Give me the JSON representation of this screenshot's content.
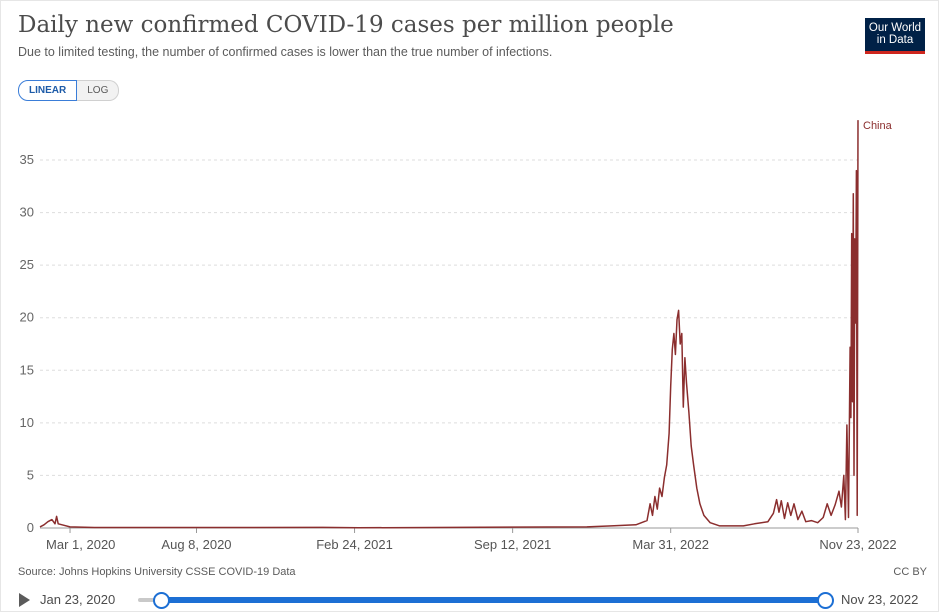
{
  "header": {
    "title": "Daily new confirmed COVID-19 cases per million people",
    "subtitle": "Due to limited testing, the number of confirmed cases is lower than the true number of infections.",
    "logo_line1": "Our World",
    "logo_line2": "in Data"
  },
  "scale_toggle": {
    "linear": "LINEAR",
    "log": "LOG",
    "selected": "LINEAR"
  },
  "footer": {
    "source": "Source: Johns Hopkins University CSSE COVID-19 Data",
    "license": "CC BY"
  },
  "timeline": {
    "start_label": "Jan 23, 2020",
    "end_label": "Nov 23, 2022",
    "play_icon": "play-icon"
  },
  "colors": {
    "series": "#8b2e2e",
    "accent": "#1c6fd4",
    "logo_bg": "#002147",
    "logo_bar": "#ce261e",
    "grid": "#dddddd"
  },
  "chart_data": {
    "type": "line",
    "title": "Daily new confirmed COVID-19 cases per million people",
    "xlabel": "",
    "ylabel": "",
    "ylim": [
      0,
      39
    ],
    "xlim": [
      "2020-01-23",
      "2022-11-23"
    ],
    "y_ticks": [
      0,
      5,
      10,
      15,
      20,
      25,
      30,
      35
    ],
    "x_ticks": [
      {
        "date": "2020-03-01",
        "label": "Mar 1, 2020"
      },
      {
        "date": "2020-08-08",
        "label": "Aug 8, 2020"
      },
      {
        "date": "2021-02-24",
        "label": "Feb 24, 2021"
      },
      {
        "date": "2021-09-12",
        "label": "Sep 12, 2021"
      },
      {
        "date": "2022-03-31",
        "label": "Mar 31, 2022"
      },
      {
        "date": "2022-11-23",
        "label": "Nov 23, 2022"
      }
    ],
    "grid": true,
    "series": [
      {
        "name": "China",
        "points": [
          [
            "2020-01-23",
            0.1
          ],
          [
            "2020-01-28",
            0.3
          ],
          [
            "2020-02-02",
            0.6
          ],
          [
            "2020-02-07",
            0.8
          ],
          [
            "2020-02-11",
            0.4
          ],
          [
            "2020-02-13",
            1.1
          ],
          [
            "2020-02-15",
            0.4
          ],
          [
            "2020-02-20",
            0.3
          ],
          [
            "2020-03-01",
            0.1
          ],
          [
            "2020-04-01",
            0.05
          ],
          [
            "2020-08-01",
            0.05
          ],
          [
            "2021-01-15",
            0.06
          ],
          [
            "2021-03-01",
            0.02
          ],
          [
            "2021-08-05",
            0.08
          ],
          [
            "2021-12-15",
            0.1
          ],
          [
            "2022-01-15",
            0.2
          ],
          [
            "2022-02-15",
            0.3
          ],
          [
            "2022-03-01",
            0.7
          ],
          [
            "2022-03-05",
            2.3
          ],
          [
            "2022-03-08",
            1.2
          ],
          [
            "2022-03-11",
            3.0
          ],
          [
            "2022-03-14",
            1.8
          ],
          [
            "2022-03-17",
            3.8
          ],
          [
            "2022-03-20",
            3.0
          ],
          [
            "2022-03-23",
            4.8
          ],
          [
            "2022-03-26",
            6.0
          ],
          [
            "2022-03-29",
            9.0
          ],
          [
            "2022-03-31",
            13.5
          ],
          [
            "2022-04-02",
            17.0
          ],
          [
            "2022-04-04",
            18.5
          ],
          [
            "2022-04-06",
            16.5
          ],
          [
            "2022-04-08",
            19.8
          ],
          [
            "2022-04-10",
            20.7
          ],
          [
            "2022-04-12",
            17.5
          ],
          [
            "2022-04-14",
            18.5
          ],
          [
            "2022-04-16",
            11.5
          ],
          [
            "2022-04-18",
            16.2
          ],
          [
            "2022-04-20",
            13.8
          ],
          [
            "2022-04-23",
            11.0
          ],
          [
            "2022-04-26",
            7.8
          ],
          [
            "2022-04-29",
            6.0
          ],
          [
            "2022-05-03",
            3.8
          ],
          [
            "2022-05-07",
            2.3
          ],
          [
            "2022-05-12",
            1.2
          ],
          [
            "2022-05-20",
            0.5
          ],
          [
            "2022-06-01",
            0.2
          ],
          [
            "2022-07-01",
            0.2
          ],
          [
            "2022-07-15",
            0.4
          ],
          [
            "2022-08-01",
            0.6
          ],
          [
            "2022-08-08",
            1.4
          ],
          [
            "2022-08-12",
            2.7
          ],
          [
            "2022-08-15",
            1.5
          ],
          [
            "2022-08-18",
            2.6
          ],
          [
            "2022-08-22",
            0.9
          ],
          [
            "2022-08-26",
            2.4
          ],
          [
            "2022-08-30",
            1.2
          ],
          [
            "2022-09-03",
            2.3
          ],
          [
            "2022-09-08",
            0.8
          ],
          [
            "2022-09-13",
            1.6
          ],
          [
            "2022-09-18",
            0.6
          ],
          [
            "2022-09-25",
            0.7
          ],
          [
            "2022-10-03",
            0.5
          ],
          [
            "2022-10-10",
            1.0
          ],
          [
            "2022-10-15",
            2.3
          ],
          [
            "2022-10-20",
            1.2
          ],
          [
            "2022-10-25",
            2.2
          ],
          [
            "2022-10-30",
            3.5
          ],
          [
            "2022-11-02",
            2.0
          ],
          [
            "2022-11-05",
            5.0
          ],
          [
            "2022-11-07",
            0.8
          ],
          [
            "2022-11-09",
            9.8
          ],
          [
            "2022-11-11",
            1.0
          ],
          [
            "2022-11-13",
            17.2
          ],
          [
            "2022-11-14",
            10.5
          ],
          [
            "2022-11-15",
            28.0
          ],
          [
            "2022-11-16",
            12.0
          ],
          [
            "2022-11-17",
            31.8
          ],
          [
            "2022-11-18",
            5.0
          ],
          [
            "2022-11-19",
            27.5
          ],
          [
            "2022-11-20",
            19.5
          ],
          [
            "2022-11-21",
            34.0
          ],
          [
            "2022-11-22",
            1.2
          ],
          [
            "2022-11-23",
            38.8
          ]
        ]
      }
    ]
  }
}
